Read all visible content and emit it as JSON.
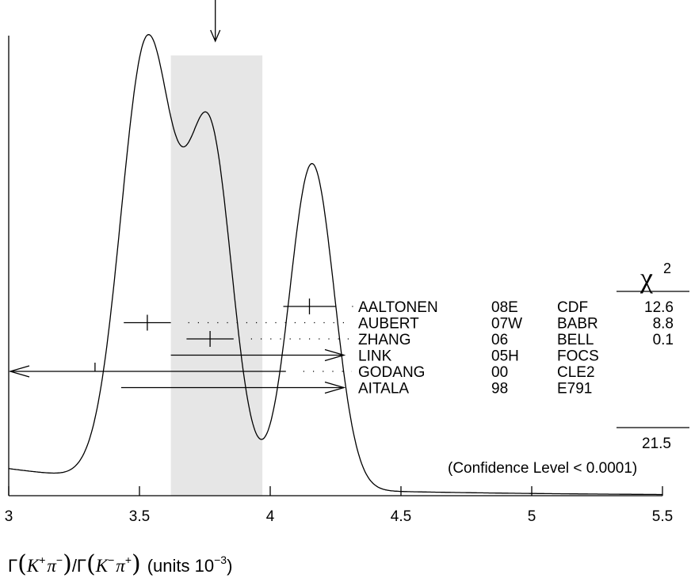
{
  "chart_data": {
    "type": "ideogram",
    "xlabel": {
      "gamma1": "Γ",
      "num_particle1": "K",
      "num_sup1": "+",
      "num_particle2": "π",
      "num_sup2": "−",
      "slash": "/Γ",
      "den_particle1": "K",
      "den_sup1": "−",
      "den_particle2": "π",
      "den_sup2": "+",
      "units": "(units 10",
      "units_exp": "−3",
      "units_close": ")"
    },
    "xlim": [
      3,
      5.5
    ],
    "xticks": [
      {
        "value": 3,
        "label": "3"
      },
      {
        "value": 3.5,
        "label": "3.5"
      },
      {
        "value": 4,
        "label": "4"
      },
      {
        "value": 4.5,
        "label": "4.5"
      },
      {
        "value": 5,
        "label": "5"
      },
      {
        "value": 5.5,
        "label": "5.5"
      }
    ],
    "average": {
      "value": 3.79,
      "band_low": 3.62,
      "band_high": 3.97
    },
    "ideogram_peaks": [
      {
        "x": 3.53,
        "height": 1.0,
        "width": 0.1
      },
      {
        "x": 3.77,
        "height": 0.78,
        "width": 0.085
      },
      {
        "x": 4.16,
        "height": 0.74,
        "width": 0.085
      }
    ],
    "chi2_header": {
      "symbol": "χ",
      "exponent": "2"
    },
    "measurements": [
      {
        "author": "AALTONEN",
        "year": "08E",
        "experiment": "CDF",
        "chi2": "12.6",
        "value": 4.15,
        "err_low": 0.1,
        "err_high": 0.1,
        "in_ideogram": true
      },
      {
        "author": "AUBERT",
        "year": "07W",
        "experiment": "BABR",
        "chi2": "8.8",
        "value": 3.53,
        "err_low": 0.09,
        "err_high": 0.09,
        "in_ideogram": true
      },
      {
        "author": "ZHANG",
        "year": "06",
        "experiment": "BELL",
        "chi2": "0.1",
        "value": 3.77,
        "err_low": 0.09,
        "err_high": 0.09,
        "in_ideogram": true
      },
      {
        "author": "LINK",
        "year": "05H",
        "experiment": "FOCS",
        "chi2": "",
        "arrow_from": 3.62,
        "arrow_dir": "right",
        "in_ideogram": false
      },
      {
        "author": "GODANG",
        "year": "00",
        "experiment": "CLE2",
        "chi2": "",
        "value": 3.33,
        "err_high": 4.06,
        "arrow_dir": "left",
        "in_ideogram": false
      },
      {
        "author": "AITALA",
        "year": "98",
        "experiment": "E791",
        "chi2": "",
        "arrow_from": 3.43,
        "arrow_dir": "right",
        "in_ideogram": false
      }
    ],
    "chi2_total": "21.5",
    "confidence_level": "(Confidence Level < 0.0001)"
  }
}
